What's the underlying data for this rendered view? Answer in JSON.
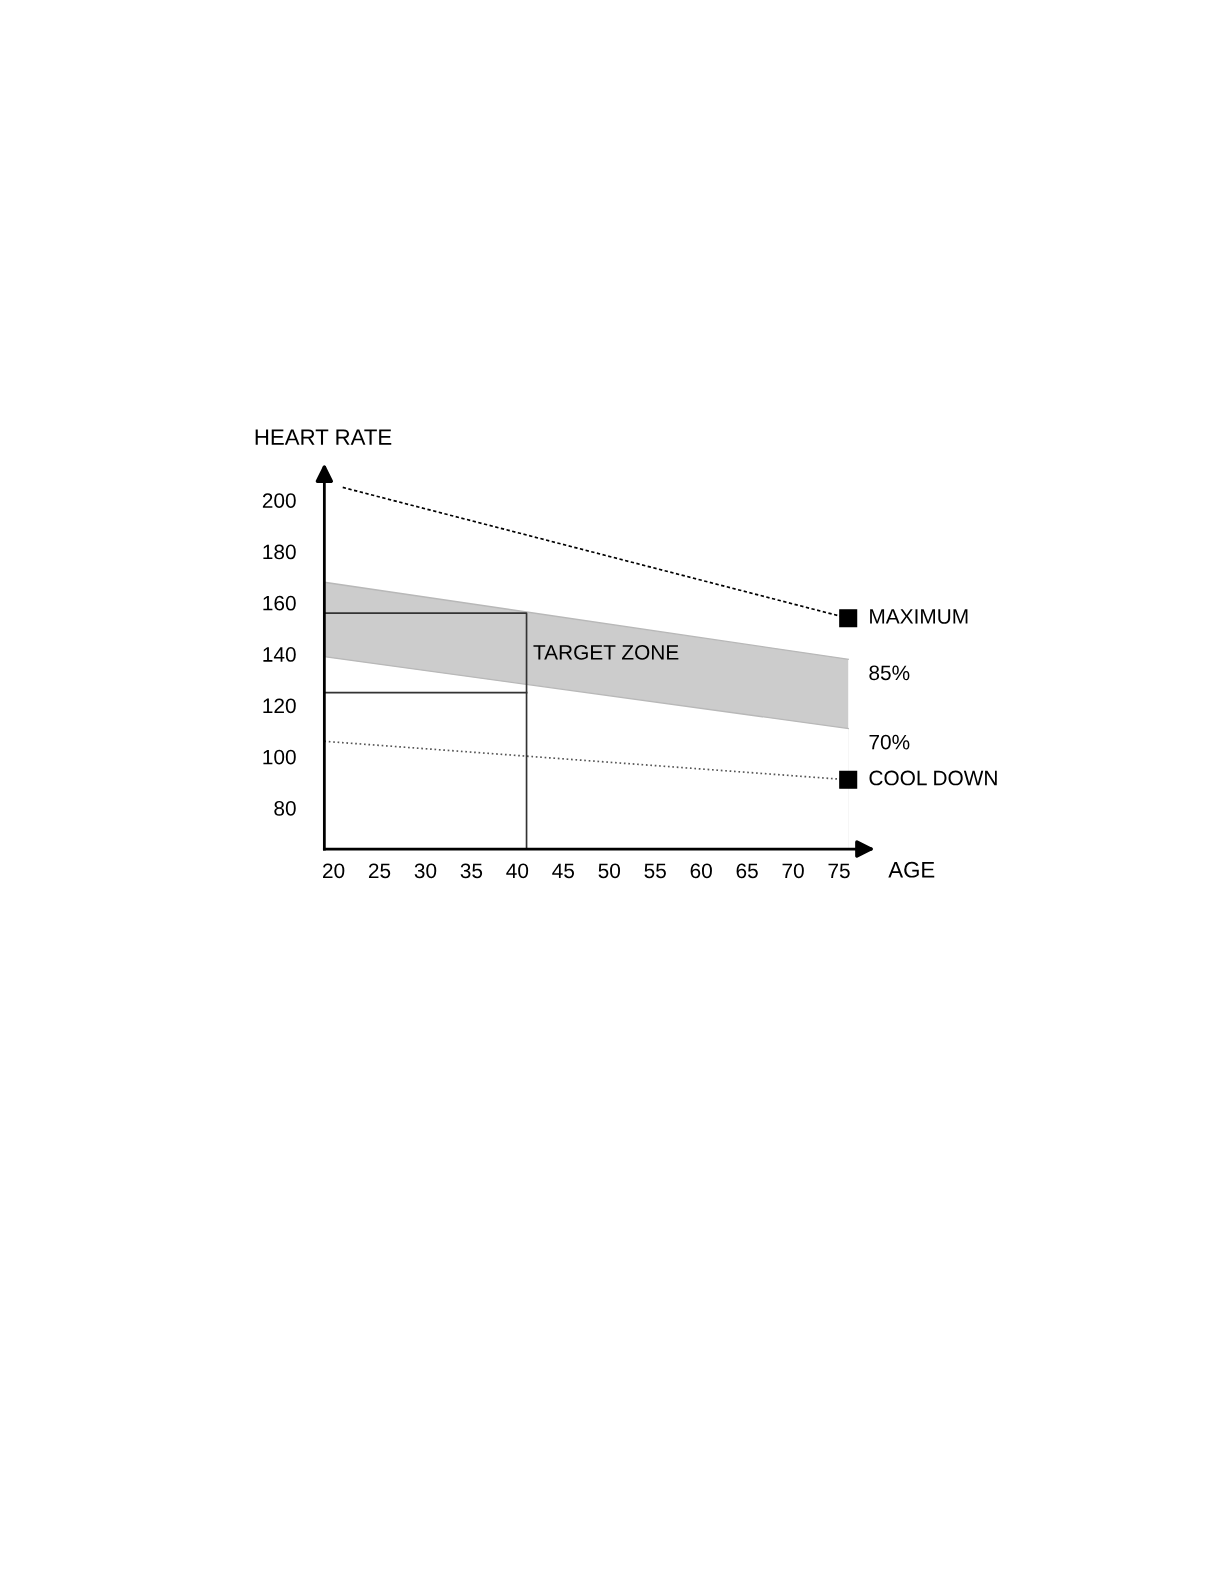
{
  "chart_data": {
    "type": "line",
    "xlabel": "AGE",
    "ylabel": "HEART RATE",
    "xlim": [
      19,
      78
    ],
    "ylim": [
      64,
      211
    ],
    "xticks": [
      20,
      25,
      30,
      35,
      40,
      45,
      50,
      55,
      60,
      65,
      70,
      75
    ],
    "yticks": [
      80,
      100,
      120,
      140,
      160,
      180,
      200
    ],
    "grid": false,
    "legend": false,
    "series": [
      {
        "name": "85%",
        "type": "area",
        "color": "#cccccc",
        "x": [
          19,
          76
        ],
        "values": [
          168,
          138
        ]
      },
      {
        "name": "70%",
        "type": "area",
        "color": "#ffffff",
        "x": [
          19,
          76
        ],
        "values": [
          139,
          111
        ]
      },
      {
        "name": "MAXIMUM",
        "color": "#000000",
        "x": [
          21,
          76
        ],
        "values": [
          205,
          154
        ],
        "line_style": "dashed",
        "marker": "square"
      },
      {
        "name": "COOL DOWN",
        "color": "#555555",
        "x": [
          19,
          76
        ],
        "values": [
          106,
          91
        ],
        "line_style": "dotted",
        "marker": "square"
      },
      {
        "color": "#333333",
        "x": [
          19,
          41,
          41
        ],
        "values": [
          156,
          156,
          64
        ],
        "line_style": "solid"
      },
      {
        "color": "#333333",
        "x": [
          19,
          41
        ],
        "values": [
          125,
          125
        ],
        "line_style": "solid"
      }
    ],
    "annotations": [
      {
        "text": "TARGET ZONE",
        "x": 41,
        "y": 140
      }
    ]
  }
}
